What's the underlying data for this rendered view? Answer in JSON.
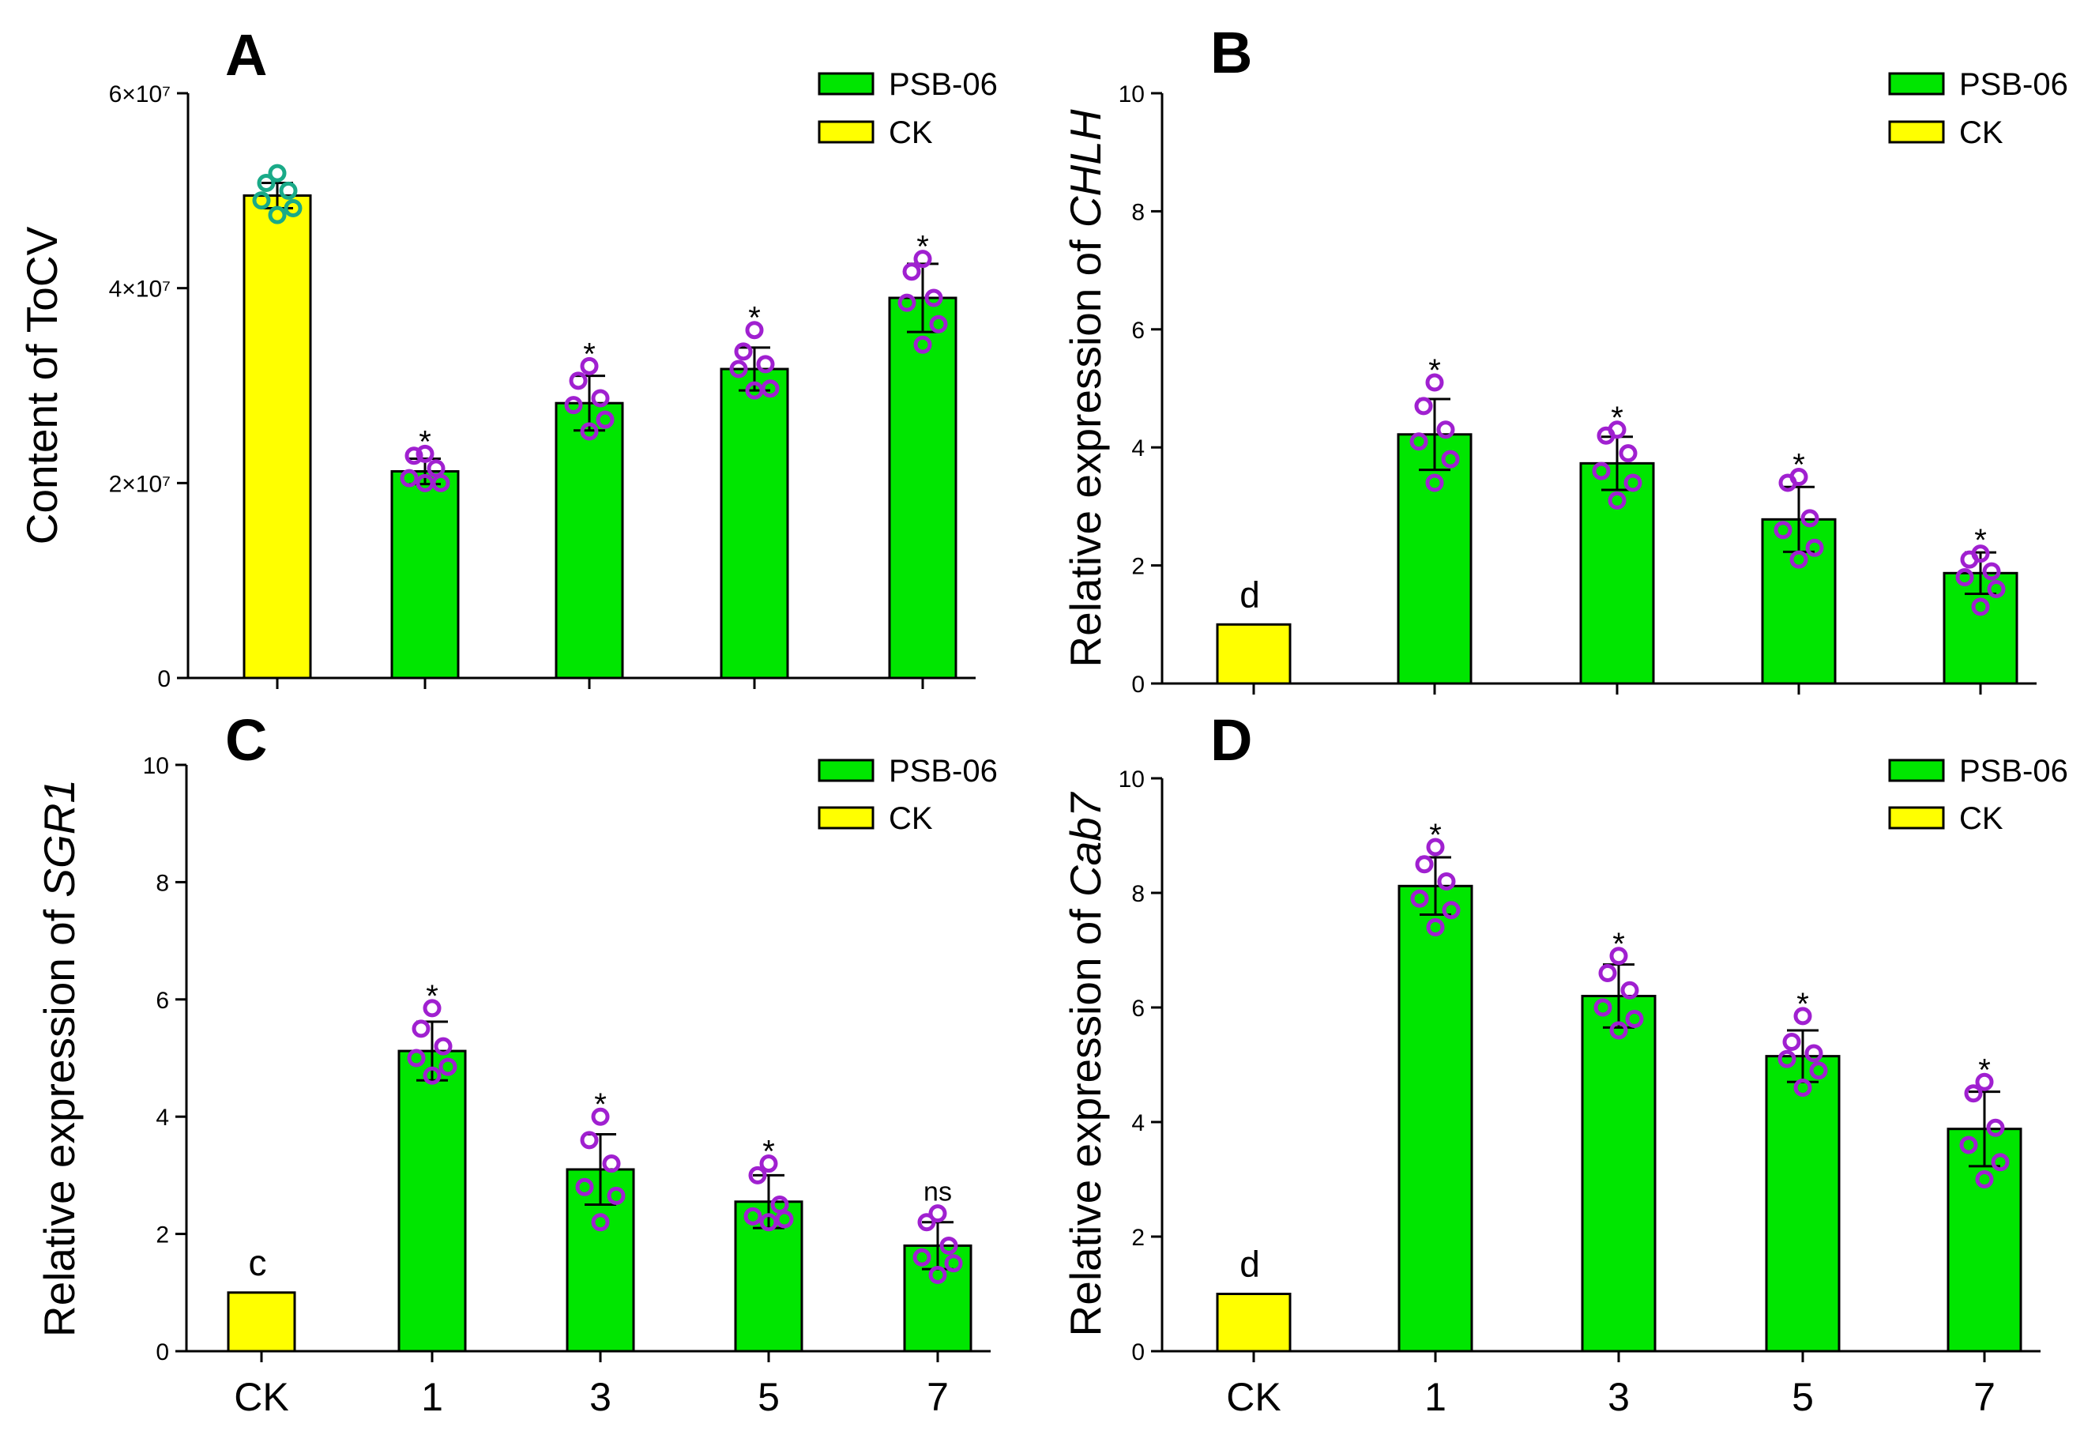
{
  "colors": {
    "treatment": "#00e600",
    "control": "#ffff00",
    "treatment_dots": "#a020d0",
    "control_dots": "#1aaa88",
    "axis": "#000000"
  },
  "legend": {
    "treatment_label": "PSB-06",
    "control_label": "CK"
  },
  "chart_data": [
    {
      "id": "A",
      "type": "bar",
      "panel_label": "A",
      "ylabel_plain": "Content of ToCV",
      "ylabel_italic": "",
      "categories": [
        "CK",
        "1",
        "3",
        "5",
        "7"
      ],
      "show_category_labels": false,
      "ylim": [
        0,
        60000000
      ],
      "yticks": [
        0,
        20000000,
        40000000,
        60000000
      ],
      "ytick_labels": [
        "0",
        "2×10⁷",
        "4×10⁷",
        "6×10⁷"
      ],
      "values": [
        49500000,
        21200000,
        28200000,
        31700000,
        39000000
      ],
      "errors": [
        1300000,
        1300000,
        2800000,
        2200000,
        3500000
      ],
      "points": [
        [
          51800000,
          50800000,
          50000000,
          49000000,
          48200000,
          47500000
        ],
        [
          23000000,
          22800000,
          21500000,
          20500000,
          20000000,
          20000000
        ],
        [
          32000000,
          30500000,
          28700000,
          28000000,
          26500000,
          25300000
        ],
        [
          35700000,
          33500000,
          32200000,
          31700000,
          29700000,
          29500000
        ],
        [
          43000000,
          41700000,
          39000000,
          38500000,
          36300000,
          34200000
        ]
      ],
      "significance": [
        "",
        "*",
        "*",
        "*",
        "*"
      ],
      "control_annotation": ""
    },
    {
      "id": "B",
      "type": "bar",
      "panel_label": "B",
      "ylabel_plain": "Relative expression of ",
      "ylabel_italic": "CHLH",
      "categories": [
        "CK",
        "1",
        "3",
        "5",
        "7"
      ],
      "show_category_labels": false,
      "ylim": [
        0,
        10
      ],
      "yticks": [
        0,
        2,
        4,
        6,
        8,
        10
      ],
      "ytick_labels": [
        "0",
        "2",
        "4",
        "6",
        "8",
        "10"
      ],
      "values": [
        1.0,
        4.22,
        3.73,
        2.78,
        1.87
      ],
      "errors": [
        0,
        0.6,
        0.45,
        0.55,
        0.35
      ],
      "points": [
        [],
        [
          5.1,
          4.7,
          4.3,
          4.1,
          3.8,
          3.4
        ],
        [
          4.3,
          4.2,
          3.9,
          3.6,
          3.4,
          3.1
        ],
        [
          3.5,
          3.4,
          2.8,
          2.6,
          2.3,
          2.1
        ],
        [
          2.2,
          2.1,
          1.9,
          1.8,
          1.6,
          1.3
        ]
      ],
      "significance": [
        "",
        "*",
        "*",
        "*",
        "*"
      ],
      "control_annotation": "d"
    },
    {
      "id": "C",
      "type": "bar",
      "panel_label": "C",
      "ylabel_plain": "Relative expression of ",
      "ylabel_italic": "SGR1",
      "categories": [
        "CK",
        "1",
        "3",
        "5",
        "7"
      ],
      "show_category_labels": true,
      "ylim": [
        0,
        10
      ],
      "yticks": [
        0,
        2,
        4,
        6,
        8,
        10
      ],
      "ytick_labels": [
        "0",
        "2",
        "4",
        "6",
        "8",
        "10"
      ],
      "values": [
        1.0,
        5.12,
        3.1,
        2.55,
        1.8
      ],
      "errors": [
        0,
        0.5,
        0.6,
        0.45,
        0.4
      ],
      "points": [
        [],
        [
          5.85,
          5.5,
          5.2,
          5.0,
          4.85,
          4.7
        ],
        [
          4.0,
          3.6,
          3.2,
          2.8,
          2.65,
          2.2
        ],
        [
          3.2,
          3.0,
          2.5,
          2.3,
          2.25,
          2.2
        ],
        [
          2.35,
          2.2,
          1.8,
          1.6,
          1.5,
          1.3
        ]
      ],
      "significance": [
        "",
        "*",
        "*",
        "*",
        "ns"
      ],
      "control_annotation": "c"
    },
    {
      "id": "D",
      "type": "bar",
      "panel_label": "D",
      "ylabel_plain": "Relative expression of ",
      "ylabel_italic": "Cab7",
      "categories": [
        "CK",
        "1",
        "3",
        "5",
        "7"
      ],
      "show_category_labels": true,
      "ylim": [
        0,
        10
      ],
      "yticks": [
        0,
        2,
        4,
        6,
        8,
        10
      ],
      "ytick_labels": [
        "0",
        "2",
        "4",
        "6",
        "8",
        "10"
      ],
      "values": [
        1.0,
        8.12,
        6.2,
        5.15,
        3.88
      ],
      "errors": [
        0,
        0.5,
        0.55,
        0.45,
        0.65
      ],
      "points": [
        [],
        [
          8.8,
          8.5,
          8.2,
          7.9,
          7.7,
          7.4
        ],
        [
          6.9,
          6.6,
          6.3,
          6.0,
          5.8,
          5.6
        ],
        [
          5.85,
          5.4,
          5.2,
          5.1,
          4.9,
          4.6
        ],
        [
          4.7,
          4.5,
          3.9,
          3.6,
          3.3,
          3.0
        ]
      ],
      "significance": [
        "",
        "*",
        "*",
        "*",
        "*"
      ],
      "control_annotation": "d"
    }
  ]
}
